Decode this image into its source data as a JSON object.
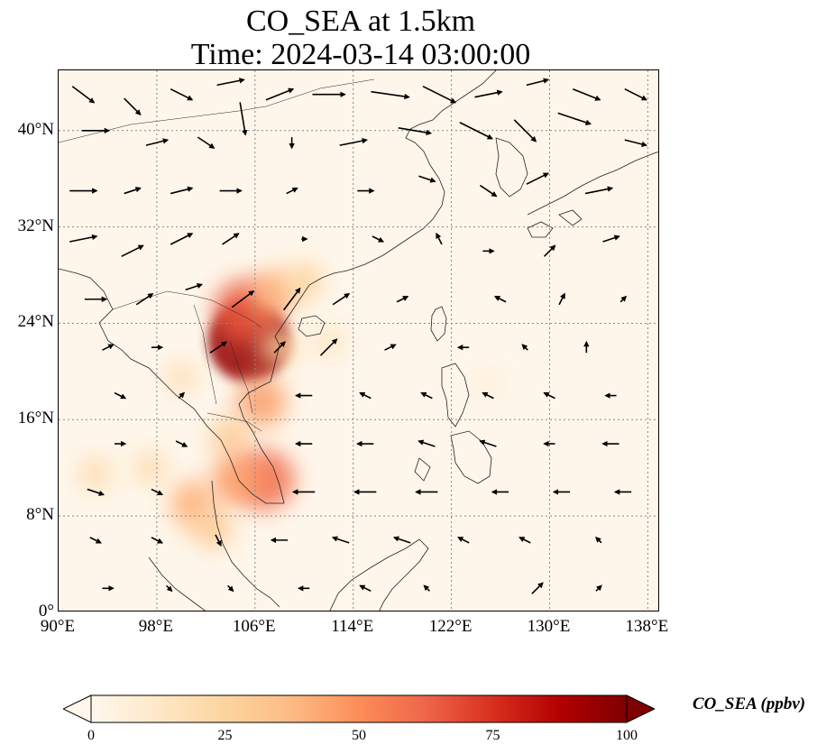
{
  "title": {
    "line1": "CO_SEA at 1.5km",
    "line2": "Time: 2024-03-14 03:00:00"
  },
  "map": {
    "lon_range": [
      90,
      139
    ],
    "lat_range": [
      0,
      45
    ],
    "lat_ticks": [
      {
        "value": 0,
        "label": "0°"
      },
      {
        "value": 8,
        "label": "8°N"
      },
      {
        "value": 16,
        "label": "16°N"
      },
      {
        "value": 24,
        "label": "24°N"
      },
      {
        "value": 32,
        "label": "32°N"
      },
      {
        "value": 40,
        "label": "40°N"
      }
    ],
    "lon_ticks": [
      {
        "value": 90,
        "label": "90°E"
      },
      {
        "value": 98,
        "label": "98°E"
      },
      {
        "value": 106,
        "label": "106°E"
      },
      {
        "value": 114,
        "label": "114°E"
      },
      {
        "value": 122,
        "label": "122°E"
      },
      {
        "value": 130,
        "label": "130°E"
      },
      {
        "value": 138,
        "label": "138°E"
      }
    ],
    "gridlines": true,
    "background_color": "#fef6ea",
    "coastline_color": "#222222",
    "concentration_plumes": [
      {
        "lon": 105.5,
        "lat": 22.5,
        "value": 95
      },
      {
        "lon": 105.2,
        "lat": 25.0,
        "value": 65
      },
      {
        "lon": 107.5,
        "lat": 26.5,
        "value": 40
      },
      {
        "lon": 110.0,
        "lat": 27.5,
        "value": 25
      },
      {
        "lon": 106.5,
        "lat": 17.5,
        "value": 45
      },
      {
        "lon": 104.0,
        "lat": 14.5,
        "value": 30
      },
      {
        "lon": 106.8,
        "lat": 11.0,
        "value": 60
      },
      {
        "lon": 104.5,
        "lat": 11.0,
        "value": 45
      },
      {
        "lon": 101.0,
        "lat": 9.0,
        "value": 40
      },
      {
        "lon": 102.5,
        "lat": 7.0,
        "value": 30
      },
      {
        "lon": 93.0,
        "lat": 11.5,
        "value": 20
      },
      {
        "lon": 97.5,
        "lat": 12.0,
        "value": 20
      },
      {
        "lon": 100.0,
        "lat": 19.5,
        "value": 18
      },
      {
        "lon": 108.0,
        "lat": 22.0,
        "value": 25
      },
      {
        "lon": 112.0,
        "lat": 22.5,
        "value": 15
      },
      {
        "lon": 125.0,
        "lat": 19.0,
        "value": 8
      }
    ],
    "wind_vectors": [
      {
        "lon": 92,
        "lat": 43,
        "u": 4,
        "v": -3
      },
      {
        "lon": 96,
        "lat": 42,
        "u": 3,
        "v": -3
      },
      {
        "lon": 100,
        "lat": 43,
        "u": 4,
        "v": -2
      },
      {
        "lon": 104,
        "lat": 44,
        "u": 5,
        "v": 1
      },
      {
        "lon": 108,
        "lat": 43,
        "u": 5,
        "v": 2
      },
      {
        "lon": 112,
        "lat": 43,
        "u": 6,
        "v": 0
      },
      {
        "lon": 117,
        "lat": 43,
        "u": 7,
        "v": -1
      },
      {
        "lon": 121,
        "lat": 43,
        "u": 6,
        "v": -3
      },
      {
        "lon": 125,
        "lat": 43,
        "u": 5,
        "v": 1
      },
      {
        "lon": 129,
        "lat": 44,
        "u": 4,
        "v": 1
      },
      {
        "lon": 133,
        "lat": 43,
        "u": 5,
        "v": -2
      },
      {
        "lon": 137,
        "lat": 43,
        "u": 4,
        "v": -2
      },
      {
        "lon": 93,
        "lat": 40,
        "u": 5,
        "v": 0
      },
      {
        "lon": 98,
        "lat": 39,
        "u": 4,
        "v": 1
      },
      {
        "lon": 102,
        "lat": 39,
        "u": 3,
        "v": -2
      },
      {
        "lon": 105,
        "lat": 41,
        "u": 1,
        "v": -6
      },
      {
        "lon": 109,
        "lat": 39,
        "u": 0,
        "v": -2
      },
      {
        "lon": 114,
        "lat": 39,
        "u": 5,
        "v": 1
      },
      {
        "lon": 119,
        "lat": 40,
        "u": 6,
        "v": -1
      },
      {
        "lon": 124,
        "lat": 40,
        "u": 6,
        "v": -3
      },
      {
        "lon": 128,
        "lat": 40,
        "u": 4,
        "v": -4
      },
      {
        "lon": 132,
        "lat": 41,
        "u": 6,
        "v": -2
      },
      {
        "lon": 137,
        "lat": 39,
        "u": 4,
        "v": -1
      },
      {
        "lon": 92,
        "lat": 35,
        "u": 5,
        "v": 0
      },
      {
        "lon": 96,
        "lat": 35,
        "u": 3,
        "v": 1
      },
      {
        "lon": 100,
        "lat": 35,
        "u": 4,
        "v": 1
      },
      {
        "lon": 104,
        "lat": 35,
        "u": 4,
        "v": 0
      },
      {
        "lon": 109,
        "lat": 35,
        "u": 2,
        "v": 1
      },
      {
        "lon": 115,
        "lat": 35,
        "u": 3,
        "v": 0
      },
      {
        "lon": 120,
        "lat": 36,
        "u": 3,
        "v": -1
      },
      {
        "lon": 125,
        "lat": 35,
        "u": 3,
        "v": -2
      },
      {
        "lon": 129,
        "lat": 36,
        "u": 4,
        "v": 2
      },
      {
        "lon": 134,
        "lat": 35,
        "u": 5,
        "v": 1
      },
      {
        "lon": 92,
        "lat": 31,
        "u": 5,
        "v": 1
      },
      {
        "lon": 96,
        "lat": 30,
        "u": 4,
        "v": 2
      },
      {
        "lon": 100,
        "lat": 31,
        "u": 4,
        "v": 2
      },
      {
        "lon": 104,
        "lat": 31,
        "u": 3,
        "v": 2
      },
      {
        "lon": 110,
        "lat": 31,
        "u": 1,
        "v": 0
      },
      {
        "lon": 116,
        "lat": 31,
        "u": 2,
        "v": -1
      },
      {
        "lon": 121,
        "lat": 31,
        "u": -1,
        "v": 2
      },
      {
        "lon": 125,
        "lat": 30,
        "u": 2,
        "v": 0
      },
      {
        "lon": 130,
        "lat": 30,
        "u": 2,
        "v": 2
      },
      {
        "lon": 135,
        "lat": 31,
        "u": 3,
        "v": 1
      },
      {
        "lon": 93,
        "lat": 26,
        "u": 4,
        "v": 0
      },
      {
        "lon": 97,
        "lat": 26,
        "u": 3,
        "v": 2
      },
      {
        "lon": 101,
        "lat": 27,
        "u": 3,
        "v": 1
      },
      {
        "lon": 105,
        "lat": 26,
        "u": 4,
        "v": 3
      },
      {
        "lon": 109,
        "lat": 26,
        "u": 3,
        "v": 4
      },
      {
        "lon": 113,
        "lat": 26,
        "u": 3,
        "v": 2
      },
      {
        "lon": 118,
        "lat": 26,
        "u": 2,
        "v": 1
      },
      {
        "lon": 126,
        "lat": 26,
        "u": -2,
        "v": 1
      },
      {
        "lon": 131,
        "lat": 26,
        "u": 1,
        "v": 2
      },
      {
        "lon": 136,
        "lat": 26,
        "u": 1,
        "v": 1
      },
      {
        "lon": 94,
        "lat": 22,
        "u": 2,
        "v": 1
      },
      {
        "lon": 98,
        "lat": 22,
        "u": 2,
        "v": 0
      },
      {
        "lon": 103,
        "lat": 22,
        "u": 3,
        "v": 2
      },
      {
        "lon": 108,
        "lat": 22,
        "u": 2,
        "v": 2
      },
      {
        "lon": 112,
        "lat": 22,
        "u": 3,
        "v": 3
      },
      {
        "lon": 117,
        "lat": 22,
        "u": 2,
        "v": 1
      },
      {
        "lon": 123,
        "lat": 22,
        "u": -2,
        "v": 0
      },
      {
        "lon": 128,
        "lat": 22,
        "u": -1,
        "v": 1
      },
      {
        "lon": 133,
        "lat": 22,
        "u": 0,
        "v": 2
      },
      {
        "lon": 95,
        "lat": 18,
        "u": 2,
        "v": -1
      },
      {
        "lon": 100,
        "lat": 18,
        "u": 1,
        "v": 1
      },
      {
        "lon": 110,
        "lat": 18,
        "u": -3,
        "v": 0
      },
      {
        "lon": 115,
        "lat": 18,
        "u": -2,
        "v": 1
      },
      {
        "lon": 120,
        "lat": 18,
        "u": -2,
        "v": 1
      },
      {
        "lon": 125,
        "lat": 18,
        "u": -2,
        "v": 1
      },
      {
        "lon": 130,
        "lat": 18,
        "u": -2,
        "v": 1
      },
      {
        "lon": 135,
        "lat": 18,
        "u": -2,
        "v": 0
      },
      {
        "lon": 95,
        "lat": 14,
        "u": 2,
        "v": 0
      },
      {
        "lon": 100,
        "lat": 14,
        "u": 2,
        "v": -1
      },
      {
        "lon": 110,
        "lat": 14,
        "u": -3,
        "v": 0
      },
      {
        "lon": 115,
        "lat": 14,
        "u": -3,
        "v": 0
      },
      {
        "lon": 120,
        "lat": 14,
        "u": -3,
        "v": 1
      },
      {
        "lon": 125,
        "lat": 14,
        "u": -3,
        "v": 1
      },
      {
        "lon": 130,
        "lat": 14,
        "u": -2,
        "v": 0
      },
      {
        "lon": 135,
        "lat": 14,
        "u": -3,
        "v": 0
      },
      {
        "lon": 93,
        "lat": 10,
        "u": 3,
        "v": -1
      },
      {
        "lon": 98,
        "lat": 10,
        "u": 2,
        "v": -1
      },
      {
        "lon": 110,
        "lat": 10,
        "u": -4,
        "v": 0
      },
      {
        "lon": 115,
        "lat": 10,
        "u": -4,
        "v": 0
      },
      {
        "lon": 120,
        "lat": 10,
        "u": -4,
        "v": 0
      },
      {
        "lon": 126,
        "lat": 10,
        "u": -3,
        "v": 0
      },
      {
        "lon": 131,
        "lat": 10,
        "u": -3,
        "v": 0
      },
      {
        "lon": 136,
        "lat": 10,
        "u": -3,
        "v": 0
      },
      {
        "lon": 93,
        "lat": 6,
        "u": 2,
        "v": -1
      },
      {
        "lon": 98,
        "lat": 6,
        "u": 2,
        "v": -1
      },
      {
        "lon": 103,
        "lat": 6,
        "u": 1,
        "v": -2
      },
      {
        "lon": 108,
        "lat": 6,
        "u": -3,
        "v": 0
      },
      {
        "lon": 113,
        "lat": 6,
        "u": -3,
        "v": 1
      },
      {
        "lon": 118,
        "lat": 6,
        "u": -3,
        "v": 1
      },
      {
        "lon": 123,
        "lat": 6,
        "u": -2,
        "v": 1
      },
      {
        "lon": 128,
        "lat": 6,
        "u": -2,
        "v": 1
      },
      {
        "lon": 134,
        "lat": 6,
        "u": -1,
        "v": 1
      },
      {
        "lon": 94,
        "lat": 2,
        "u": 2,
        "v": 0
      },
      {
        "lon": 99,
        "lat": 2,
        "u": 1,
        "v": -1
      },
      {
        "lon": 104,
        "lat": 2,
        "u": 1,
        "v": -1
      },
      {
        "lon": 110,
        "lat": 2,
        "u": -2,
        "v": 0
      },
      {
        "lon": 115,
        "lat": 2,
        "u": -2,
        "v": 1
      },
      {
        "lon": 120,
        "lat": 2,
        "u": -1,
        "v": 1
      },
      {
        "lon": 129,
        "lat": 2,
        "u": 2,
        "v": 2
      },
      {
        "lon": 134,
        "lat": 2,
        "u": 1,
        "v": 1
      }
    ]
  },
  "colorbar": {
    "label": "CO_SEA (ppbv)",
    "min": 0,
    "max": 100,
    "ticks": [
      {
        "value": 0,
        "label": "0"
      },
      {
        "value": 25,
        "label": "25"
      },
      {
        "value": 50,
        "label": "50"
      },
      {
        "value": 75,
        "label": "75"
      },
      {
        "value": 100,
        "label": "100"
      }
    ],
    "colormap": "OrRd",
    "extend": "both"
  }
}
